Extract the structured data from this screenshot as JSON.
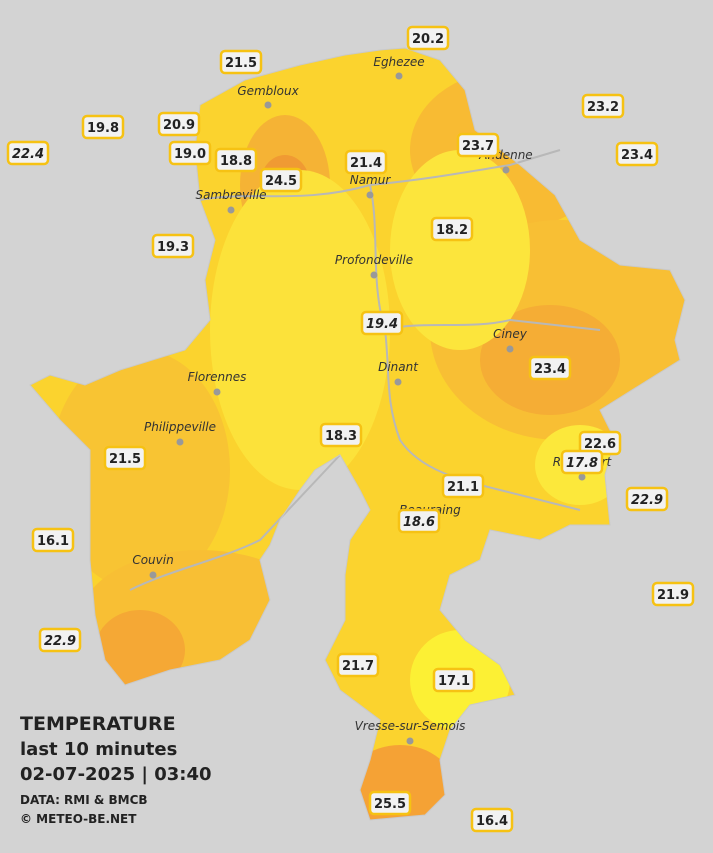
{
  "legend": {
    "title": "TEMPERATURE",
    "period": "last 10 minutes",
    "datetime": "02-07-2025  |  03:40",
    "source": "DATA: RMI & BMCB",
    "copyright": "© METEO-BE.NET"
  },
  "cities": [
    "Eghezee",
    "Gembloux",
    "Andenne",
    "Namur",
    "Sambreville",
    "Profondeville",
    "Ciney",
    "Dinant",
    "Florennes",
    "Philippeville",
    "Rochefort",
    "Beauraing",
    "Couvin",
    "Vresse-sur-Semois"
  ],
  "stations": [
    {
      "label": "20.2",
      "italic": false
    },
    {
      "label": "21.5",
      "italic": false
    },
    {
      "label": "23.2",
      "italic": false
    },
    {
      "label": "19.8",
      "italic": false
    },
    {
      "label": "20.9",
      "italic": false
    },
    {
      "label": "22.4",
      "italic": true
    },
    {
      "label": "23.7",
      "italic": false
    },
    {
      "label": "23.4",
      "italic": false
    },
    {
      "label": "19.0",
      "italic": false
    },
    {
      "label": "18.8",
      "italic": false
    },
    {
      "label": "21.4",
      "italic": false
    },
    {
      "label": "24.5",
      "italic": false
    },
    {
      "label": "18.2",
      "italic": false
    },
    {
      "label": "19.3",
      "italic": false
    },
    {
      "label": "19.4",
      "italic": true
    },
    {
      "label": "23.4",
      "italic": false
    },
    {
      "label": "18.3",
      "italic": false
    },
    {
      "label": "22.6",
      "italic": false
    },
    {
      "label": "17.8",
      "italic": true
    },
    {
      "label": "21.5",
      "italic": false
    },
    {
      "label": "21.1",
      "italic": false
    },
    {
      "label": "22.9",
      "italic": true
    },
    {
      "label": "18.6",
      "italic": true
    },
    {
      "label": "16.1",
      "italic": false
    },
    {
      "label": "21.9",
      "italic": false
    },
    {
      "label": "22.9",
      "italic": true
    },
    {
      "label": "21.7",
      "italic": false
    },
    {
      "label": "17.1",
      "italic": false
    },
    {
      "label": "25.5",
      "italic": false
    },
    {
      "label": "16.4",
      "italic": false
    }
  ]
}
